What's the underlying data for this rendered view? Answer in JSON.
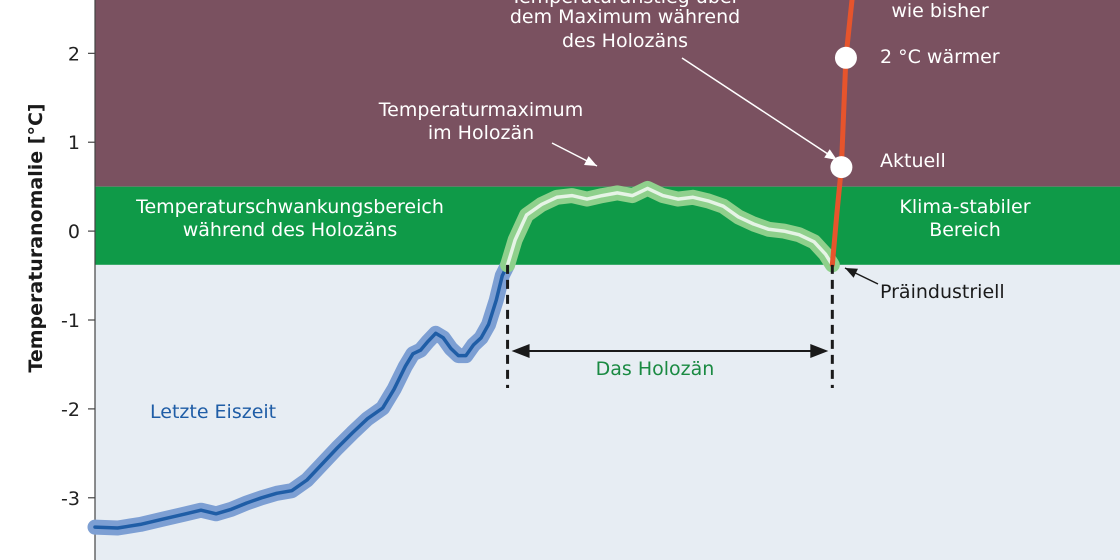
{
  "chart_data": {
    "type": "line",
    "ylabel": "Temperaturanomalie [°C]",
    "yticks": [
      "2",
      "1",
      "0",
      "-1",
      "-2",
      "-3"
    ],
    "ylim": [
      -3.7,
      2.6
    ],
    "xlim": [
      0,
      100
    ],
    "bands": [
      {
        "name": "danger_zone",
        "from": 0.5,
        "to": 2.6,
        "color": "#7a5160"
      },
      {
        "name": "holocene_range",
        "from": -0.38,
        "to": 0.5,
        "color": "#0f9a48"
      },
      {
        "name": "below",
        "from": -3.7,
        "to": -0.38,
        "color": "#e7edf3"
      }
    ],
    "series": [
      {
        "segment": "glacial",
        "color": "#1f5da6",
        "band_color": "#7d9fd3",
        "points": [
          [
            0,
            -3.33
          ],
          [
            3,
            -3.34
          ],
          [
            6,
            -3.3
          ],
          [
            9,
            -3.24
          ],
          [
            12,
            -3.18
          ],
          [
            14,
            -3.14
          ],
          [
            16,
            -3.18
          ],
          [
            18,
            -3.13
          ],
          [
            20,
            -3.06
          ],
          [
            22,
            -3.0
          ],
          [
            24,
            -2.95
          ],
          [
            26,
            -2.92
          ],
          [
            28,
            -2.8
          ],
          [
            30,
            -2.62
          ],
          [
            32,
            -2.44
          ],
          [
            34,
            -2.27
          ],
          [
            36,
            -2.11
          ],
          [
            38,
            -1.99
          ],
          [
            39.5,
            -1.78
          ],
          [
            41,
            -1.52
          ],
          [
            42,
            -1.38
          ],
          [
            43,
            -1.34
          ],
          [
            44,
            -1.24
          ],
          [
            45,
            -1.15
          ],
          [
            46,
            -1.2
          ],
          [
            47,
            -1.32
          ],
          [
            48,
            -1.4
          ],
          [
            49,
            -1.4
          ],
          [
            50,
            -1.28
          ],
          [
            51,
            -1.2
          ],
          [
            52,
            -1.05
          ],
          [
            53,
            -0.78
          ],
          [
            53.8,
            -0.5
          ],
          [
            54.5,
            -0.38
          ]
        ]
      },
      {
        "segment": "holocene",
        "color": "#e6f4e6",
        "band_color": "#8fd08c",
        "points": [
          [
            54.5,
            -0.38
          ],
          [
            55.5,
            -0.1
          ],
          [
            57,
            0.18
          ],
          [
            59,
            0.3
          ],
          [
            61,
            0.38
          ],
          [
            63,
            0.4
          ],
          [
            65,
            0.36
          ],
          [
            67,
            0.4
          ],
          [
            69,
            0.43
          ],
          [
            71,
            0.4
          ],
          [
            73,
            0.48
          ],
          [
            75,
            0.4
          ],
          [
            77,
            0.36
          ],
          [
            79,
            0.38
          ],
          [
            81,
            0.34
          ],
          [
            83,
            0.28
          ],
          [
            85,
            0.16
          ],
          [
            87,
            0.08
          ],
          [
            89,
            0.02
          ],
          [
            91,
            0.0
          ],
          [
            93,
            -0.04
          ],
          [
            95,
            -0.12
          ],
          [
            96.5,
            -0.26
          ],
          [
            97.4,
            -0.38
          ]
        ]
      },
      {
        "segment": "modern",
        "color": "#e6542c",
        "points": [
          [
            97.4,
            -0.38
          ],
          [
            98.0,
            0.2
          ],
          [
            98.6,
            0.72
          ],
          [
            99.2,
            1.95
          ],
          [
            100.0,
            2.6
          ]
        ]
      }
    ],
    "points": [
      {
        "name": "Präindustriell",
        "x": 97.4,
        "y": -0.38
      },
      {
        "name": "Aktuell",
        "x": 98.6,
        "y": 0.72
      },
      {
        "name": "2 °C wärmer",
        "x": 99.2,
        "y": 1.95
      }
    ],
    "labels": {
      "top_text_line1": "Temperaturanstieg über",
      "top_text_line2": "dem Maximum während",
      "top_text_line3": "des Holozäns",
      "top_right": "wie bisher",
      "two_degrees": "2 °C wärmer",
      "current": "Aktuell",
      "preindustrial": "Präindustriell",
      "holocene_max_line1": "Temperaturmaximum",
      "holocene_max_line2": "im Holozän",
      "range_line1": "Temperaturschwankungsbereich",
      "range_line2": "während des Holozäns",
      "stable_line1": "Klima-stabiler",
      "stable_line2": "Bereich",
      "ice_age": "Letzte Eiszeit",
      "holocene": "Das Holozän"
    }
  }
}
